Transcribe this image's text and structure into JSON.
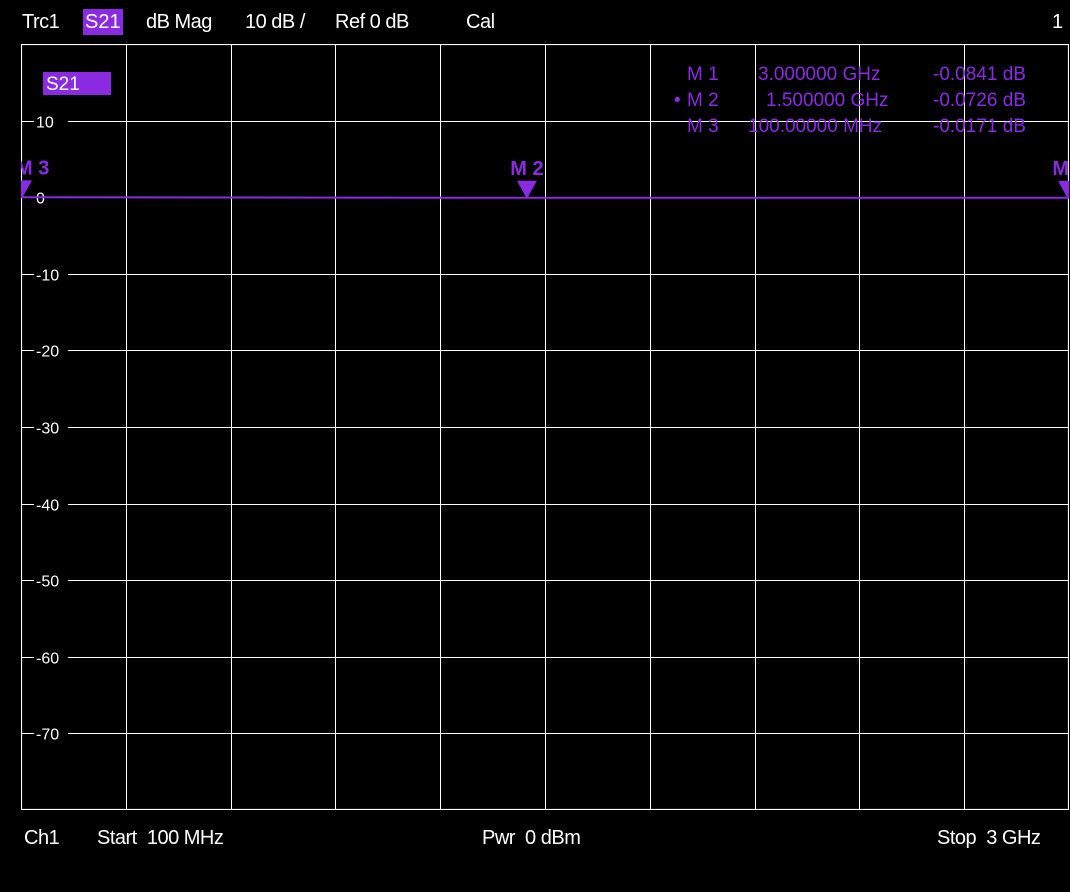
{
  "header": {
    "trace": "Trc1",
    "measurement": "S21",
    "format": "dB Mag",
    "scale": "10 dB /",
    "reference": "Ref 0 dB",
    "cal": "Cal",
    "channel_index": "1"
  },
  "trace_badge": "S21",
  "markers": [
    {
      "label": "M 1",
      "bullet": "",
      "stimulus": "3.000000 GHz",
      "response": "-0.0841 dB"
    },
    {
      "label": "M 2",
      "bullet": "•",
      "stimulus": "1.500000 GHz",
      "response": "-0.0726 dB"
    },
    {
      "label": "M 3",
      "bullet": "",
      "stimulus": "100.00000 MHz",
      "response": "-0.0171 dB"
    }
  ],
  "marker_flags": {
    "m1": "M",
    "m2": "M 2",
    "m3": "M 3"
  },
  "footer": {
    "channel": "Ch1",
    "start": "Start  100 MHz",
    "power": "Pwr  0 dBm",
    "stop": "Stop  3 GHz"
  },
  "colors": {
    "background": "#000000",
    "grid": "#ffffff",
    "trace": "#8a2be2",
    "text": "#ffffff"
  },
  "chart_data": {
    "type": "line",
    "x_unit": "MHz",
    "xlim": [
      100,
      3000
    ],
    "ylim": [
      -80,
      20
    ],
    "ytick_labels": [
      "10",
      "0",
      "-10",
      "-20",
      "-30",
      "-40",
      "-50",
      "-60",
      "-70"
    ],
    "ytick_values": [
      10,
      0,
      -10,
      -20,
      -30,
      -40,
      -50,
      -60,
      -70
    ],
    "grid": true,
    "series": [
      {
        "name": "S21",
        "x": [
          100,
          400,
          700,
          1000,
          1300,
          1500,
          1800,
          2100,
          2400,
          2700,
          3000
        ],
        "y": [
          -0.0171,
          -0.03,
          -0.04,
          -0.05,
          -0.065,
          -0.0726,
          -0.075,
          -0.078,
          -0.08,
          -0.082,
          -0.0841
        ]
      }
    ],
    "markers": [
      {
        "name": "M 1",
        "x": 3000,
        "y": -0.0841
      },
      {
        "name": "M 2",
        "x": 1500,
        "y": -0.0726
      },
      {
        "name": "M 3",
        "x": 100,
        "y": -0.0171
      }
    ]
  }
}
